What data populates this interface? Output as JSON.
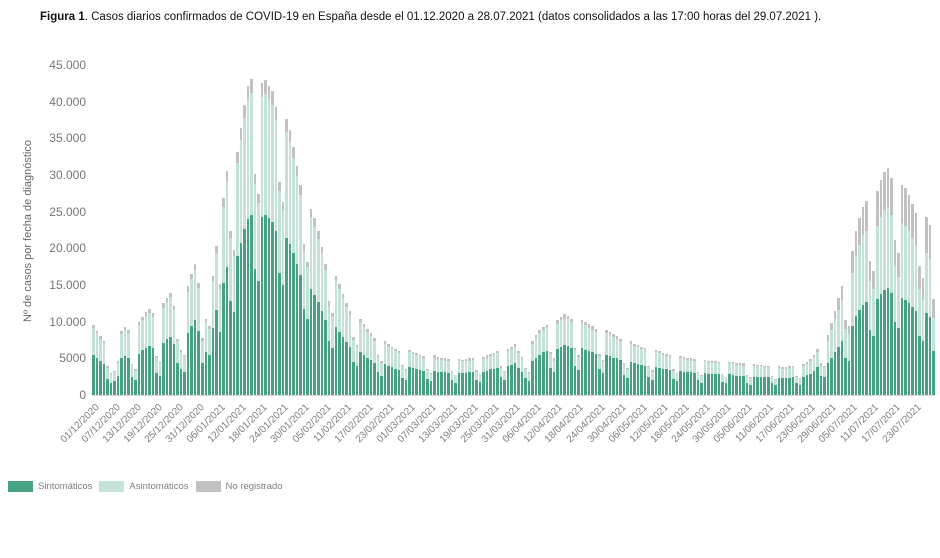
{
  "title": {
    "prefix": "Figura 1",
    "rest": ". Casos diarios confirmados de COVID-19 en España desde el 01.12.2020 a 28.07.2021  (datos consolidados a las 17:00 horas del 29.07.2021 )."
  },
  "colors": {
    "axis_text": "#7f7f7f",
    "baseline": "#d9d9d9",
    "sintomaticos": "#47A285",
    "asintomaticos": "#C4E2D7",
    "no_registrado": "#C3C1C0"
  },
  "chart_data": {
    "type": "bar",
    "stacked": true,
    "title": "Casos diarios confirmados de COVID-19 en España desde el 01.12.2020 a 28.07.2021",
    "xlabel": "",
    "ylabel": "Nº de casos por fecha de diagnóstico",
    "ylim": [
      0,
      45000
    ],
    "grid": false,
    "legend_position": "bottom-left",
    "date_range": {
      "start": "01/12/2020",
      "end": "28/07/2021"
    },
    "x_tick_every_n_bars": 6,
    "y_ticks": [
      {
        "label": "45.000",
        "value": 45000
      },
      {
        "label": "40.000",
        "value": 40000
      },
      {
        "label": "35.000",
        "value": 35000
      },
      {
        "label": "30.000",
        "value": 30000
      },
      {
        "label": "25.000",
        "value": 25000
      },
      {
        "label": "20.000",
        "value": 20000
      },
      {
        "label": "15.000",
        "value": 15000
      },
      {
        "label": "10.000",
        "value": 10000
      },
      {
        "label": "5000",
        "value": 5000
      },
      {
        "label": "0",
        "value": 0
      }
    ],
    "x_tick_labels": [
      "01/12/2020",
      "07/12/2020",
      "13/12/2020",
      "19/12/2020",
      "25/12/2020",
      "31/12/2020",
      "06/01/2021",
      "12/01/2021",
      "18/01/2021",
      "24/01/2021",
      "30/01/2021",
      "05/02/2021",
      "11/02/2021",
      "17/02/2021",
      "23/02/2021",
      "01/03/2021",
      "07/03/2021",
      "13/03/2021",
      "19/03/2021",
      "25/03/2021",
      "31/03/2021",
      "06/04/2021",
      "12/04/2021",
      "18/04/2021",
      "24/04/2021",
      "30/04/2021",
      "06/05/2021",
      "12/05/2021",
      "18/05/2021",
      "24/05/2021",
      "30/05/2021",
      "05/06/2021",
      "11/06/2021",
      "17/06/2021",
      "23/06/2021",
      "29/06/2021",
      "05/07/2021",
      "11/07/2021",
      "17/07/2021",
      "23/07/2021"
    ],
    "series": [
      {
        "name": "Sintomáticos",
        "key": "sintomaticos",
        "color": "#47A285",
        "values": [
          5400,
          5000,
          4600,
          4200,
          2200,
          1700,
          1900,
          2600,
          5000,
          5300,
          5100,
          2500,
          2000,
          5600,
          6100,
          6400,
          6700,
          6400,
          3000,
          2600,
          7100,
          7600,
          7900,
          6900,
          4300,
          3500,
          3100,
          8400,
          9400,
          10200,
          8700,
          4400,
          5900,
          5400,
          9200,
          11600,
          8600,
          15300,
          17400,
          12800,
          11300,
          18900,
          20700,
          22600,
          24000,
          24600,
          17200,
          15600,
          24300,
          24500,
          24100,
          23600,
          22400,
          16600,
          15000,
          21400,
          20600,
          19300,
          17800,
          16300,
          11700,
          10400,
          14500,
          13700,
          12700,
          11500,
          10200,
          7300,
          6400,
          9300,
          8600,
          7900,
          7200,
          6500,
          4500,
          3900,
          5900,
          5500,
          5100,
          4800,
          4400,
          3100,
          2600,
          4200,
          3900,
          3800,
          3600,
          3400,
          2300,
          2000,
          3800,
          3700,
          3500,
          3400,
          3300,
          2200,
          1900,
          3300,
          3200,
          3200,
          3100,
          3000,
          2000,
          1700,
          3000,
          3000,
          3000,
          3100,
          3200,
          2100,
          1800,
          3200,
          3300,
          3500,
          3600,
          3700,
          2400,
          2000,
          3900,
          4100,
          4300,
          3700,
          3200,
          2300,
          1900,
          4600,
          5100,
          5500,
          5800,
          6000,
          3700,
          3100,
          6300,
          6600,
          6800,
          6700,
          6400,
          4000,
          3400,
          6400,
          6200,
          6000,
          5800,
          5600,
          3500,
          3000,
          5500,
          5300,
          5100,
          5000,
          4800,
          2700,
          2300,
          4500,
          4300,
          4200,
          4100,
          4000,
          2500,
          2100,
          3800,
          3700,
          3600,
          3500,
          3400,
          2200,
          1900,
          3300,
          3200,
          3200,
          3100,
          3000,
          2000,
          1700,
          3000,
          2900,
          2900,
          2900,
          2800,
          1800,
          1600,
          2800,
          2700,
          2600,
          2600,
          2600,
          1700,
          1400,
          2500,
          2500,
          2500,
          2400,
          2400,
          1600,
          1300,
          2300,
          2300,
          2300,
          2300,
          2400,
          1600,
          1400,
          2500,
          2700,
          2900,
          3300,
          3800,
          2600,
          2400,
          4300,
          5100,
          5900,
          6600,
          7400,
          5100,
          4700,
          9400,
          10800,
          11600,
          12300,
          12700,
          8800,
          8100,
          13100,
          13800,
          14300,
          14600,
          13900,
          10000,
          9100,
          13200,
          13000,
          12600,
          12000,
          11400,
          8100,
          7300,
          11200,
          10700,
          6000
        ]
      },
      {
        "name": "Asintomáticos",
        "key": "asintomaticos",
        "color": "#C4E2D7",
        "values": [
          3700,
          3400,
          3100,
          2900,
          1500,
          1200,
          1300,
          1800,
          3300,
          3600,
          3400,
          1600,
          1300,
          3900,
          4100,
          4400,
          4500,
          4300,
          2100,
          1700,
          4800,
          5100,
          5400,
          4700,
          3000,
          2400,
          2200,
          5700,
          6400,
          6900,
          5900,
          3000,
          4000,
          3600,
          6300,
          7800,
          5800,
          10300,
          11800,
          8600,
          7600,
          12800,
          14100,
          15200,
          16200,
          16600,
          11600,
          10600,
          16400,
          16600,
          16200,
          15900,
          15100,
          11200,
          10100,
          14500,
          13900,
          13000,
          12000,
          11000,
          8000,
          7000,
          9800,
          9300,
          8600,
          7800,
          6900,
          4900,
          4300,
          6300,
          5800,
          5300,
          4800,
          4400,
          3000,
          2600,
          4000,
          3800,
          3500,
          3200,
          3000,
          2100,
          1800,
          2800,
          2700,
          2500,
          2400,
          2300,
          1600,
          1300,
          2000,
          1900,
          1900,
          1800,
          1700,
          1200,
          900,
          1800,
          1700,
          1600,
          1600,
          1700,
          1100,
          1000,
          1700,
          1600,
          1700,
          1600,
          1600,
          1100,
          1000,
          1700,
          1800,
          1800,
          1900,
          2000,
          1300,
          1100,
          2100,
          2200,
          2300,
          2000,
          1700,
          1200,
          1000,
          2400,
          2700,
          2900,
          3000,
          3100,
          1900,
          1600,
          3400,
          3600,
          3600,
          3600,
          3500,
          2100,
          1800,
          3400,
          3300,
          3200,
          3100,
          3000,
          1800,
          1600,
          3000,
          2900,
          2800,
          2600,
          2500,
          1400,
          1200,
          2400,
          2300,
          2300,
          2200,
          2100,
          1300,
          1100,
          2100,
          2000,
          1900,
          1800,
          1800,
          1100,
          900,
          1700,
          1700,
          1600,
          1600,
          1700,
          1000,
          900,
          1600,
          1600,
          1500,
          1500,
          1500,
          1000,
          800,
          1500,
          1500,
          1500,
          1500,
          1400,
          900,
          900,
          1400,
          1400,
          1400,
          1400,
          1400,
          800,
          800,
          1400,
          1300,
          1300,
          1400,
          1400,
          800,
          800,
          1400,
          1500,
          1700,
          1900,
          2100,
          1400,
          1400,
          3100,
          3700,
          4400,
          5000,
          5600,
          3900,
          3600,
          7300,
          8200,
          8900,
          9500,
          9700,
          6800,
          6300,
          10000,
          10500,
          10900,
          11100,
          10700,
          7600,
          7000,
          10300,
          10100,
          9800,
          9400,
          8900,
          6300,
          5700,
          8200,
          7900,
          4500
        ]
      },
      {
        "name": "No registrado",
        "key": "no-registrado",
        "color": "#C3C1C0",
        "values": [
          400,
          400,
          400,
          300,
          200,
          100,
          100,
          200,
          400,
          400,
          400,
          200,
          200,
          400,
          500,
          500,
          500,
          500,
          200,
          200,
          600,
          600,
          600,
          500,
          300,
          300,
          200,
          700,
          700,
          800,
          700,
          400,
          500,
          400,
          700,
          900,
          700,
          1200,
          1400,
          1000,
          900,
          1500,
          1600,
          1800,
          1900,
          1900,
          1400,
          1200,
          1900,
          1900,
          1900,
          1900,
          1800,
          1300,
          1200,
          1700,
          1600,
          1500,
          1400,
          1300,
          900,
          800,
          1100,
          1100,
          1000,
          900,
          800,
          600,
          500,
          700,
          700,
          600,
          600,
          500,
          400,
          300,
          500,
          400,
          400,
          400,
          400,
          200,
          200,
          300,
          300,
          300,
          300,
          300,
          200,
          200,
          300,
          300,
          300,
          300,
          300,
          200,
          200,
          300,
          300,
          300,
          300,
          200,
          200,
          100,
          200,
          200,
          200,
          300,
          300,
          200,
          100,
          300,
          300,
          300,
          300,
          300,
          200,
          200,
          300,
          300,
          300,
          300,
          300,
          200,
          200,
          400,
          400,
          400,
          500,
          500,
          300,
          300,
          500,
          500,
          600,
          500,
          500,
          300,
          300,
          500,
          500,
          500,
          500,
          400,
          300,
          200,
          400,
          400,
          400,
          400,
          400,
          200,
          200,
          400,
          400,
          300,
          300,
          300,
          200,
          200,
          300,
          300,
          300,
          300,
          300,
          200,
          200,
          300,
          300,
          300,
          300,
          200,
          200,
          100,
          200,
          200,
          200,
          200,
          200,
          100,
          100,
          200,
          300,
          300,
          300,
          300,
          200,
          100,
          300,
          200,
          200,
          200,
          200,
          200,
          100,
          200,
          200,
          200,
          200,
          200,
          200,
          100,
          300,
          300,
          300,
          300,
          400,
          300,
          200,
          800,
          1000,
          1200,
          1600,
          1800,
          1200,
          1100,
          2900,
          3400,
          3600,
          3800,
          4000,
          2700,
          2500,
          4700,
          5000,
          5200,
          5300,
          5000,
          3600,
          3300,
          5200,
          5100,
          4900,
          4700,
          4500,
          3200,
          2900,
          4900,
          4600,
          2600
        ]
      }
    ]
  }
}
